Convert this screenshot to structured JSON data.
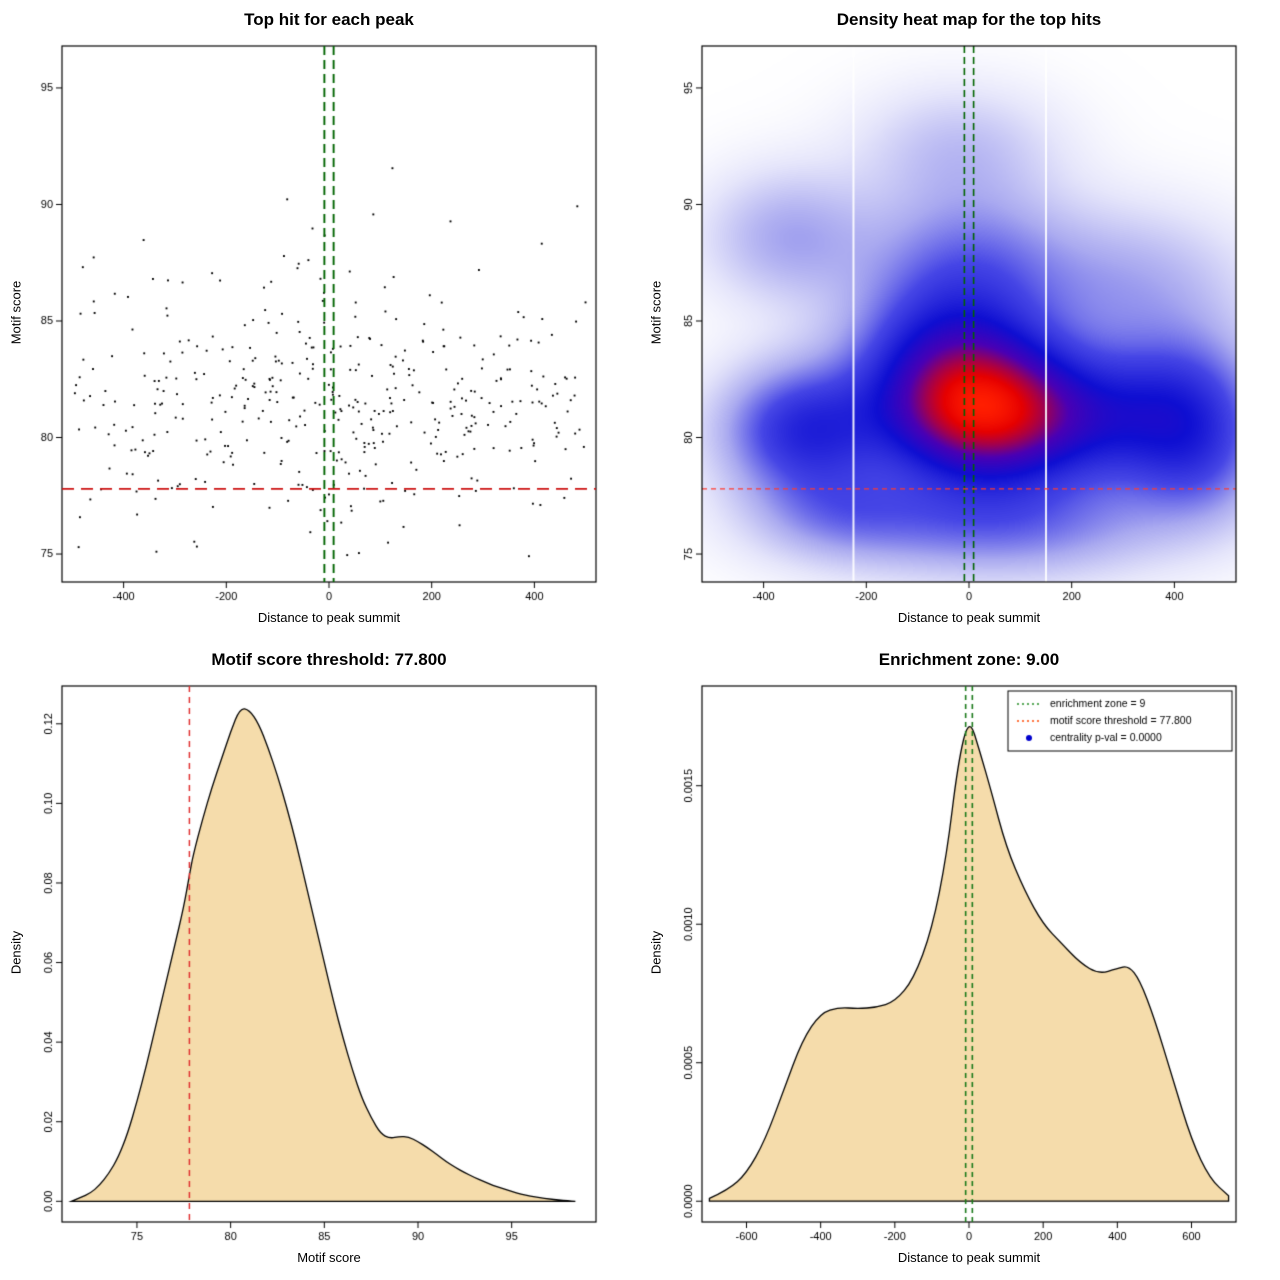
{
  "page": {
    "background": "#ffffff"
  },
  "chart_data": [
    {
      "id": "top-hits-scatter",
      "type": "scatter",
      "title": "Top hit for each peak",
      "xlabel": "Distance to peak summit",
      "ylabel": "Motif score",
      "xlim": [
        -520,
        520
      ],
      "ylim": [
        73.8,
        96.8
      ],
      "xticks": [
        -400,
        -200,
        0,
        200,
        400
      ],
      "xtick_labels": [
        "-400",
        "-200",
        "0",
        "200",
        "400"
      ],
      "yticks": [
        75,
        80,
        85,
        90,
        95
      ],
      "ytick_labels": [
        "75",
        "80",
        "85",
        "90",
        "95"
      ],
      "ytick_rotated": false,
      "motif_score_threshold": 77.8,
      "enrichment_zone": [
        -9,
        9
      ],
      "points_model": {
        "n": 430,
        "seed": 20,
        "x_range": [
          -500,
          500
        ],
        "y_mean": 81.4,
        "y_sd": 2.6,
        "y_min": 74.5,
        "y_max": 95.8,
        "high_frac": 0.05,
        "center_frac": 0.22,
        "center_spread": 170
      },
      "colors": {
        "point": "#000000",
        "threshold": "#cc1111",
        "zone": "#006400"
      }
    },
    {
      "id": "top-hits-density-heatmap",
      "type": "heatmap",
      "title": "Density heat map for the top hits",
      "xlabel": "Distance to peak summit",
      "ylabel": "Motif score",
      "xlim": [
        -520,
        520
      ],
      "ylim": [
        73.8,
        96.8
      ],
      "xticks": [
        -400,
        -200,
        0,
        200,
        400
      ],
      "xtick_labels": [
        "-400",
        "-200",
        "0",
        "200",
        "400"
      ],
      "yticks": [
        75,
        80,
        85,
        90,
        95
      ],
      "ytick_labels": [
        "75",
        "80",
        "85",
        "90",
        "95"
      ],
      "ytick_rotated": true,
      "motif_score_threshold": 77.8,
      "enrichment_zone": [
        -9,
        9
      ],
      "white_lines": [
        -225,
        150
      ],
      "gamma": 0.85,
      "kernels": [
        {
          "x": 20,
          "y": 81,
          "sx": 125,
          "sy": 2.0,
          "w": 1.05
        },
        {
          "x": -40,
          "y": 83.6,
          "sx": 130,
          "sy": 2.2,
          "w": 0.5
        },
        {
          "x": -320,
          "y": 80.3,
          "sx": 110,
          "sy": 1.9,
          "w": 0.55
        },
        {
          "x": 260,
          "y": 80.8,
          "sx": 160,
          "sy": 2.0,
          "w": 0.5
        },
        {
          "x": 430,
          "y": 81.5,
          "sx": 100,
          "sy": 2.3,
          "w": 0.3
        },
        {
          "x": 0,
          "y": 87.5,
          "sx": 140,
          "sy": 2.3,
          "w": 0.3
        },
        {
          "x": -350,
          "y": 88.6,
          "sx": 110,
          "sy": 1.9,
          "w": 0.22
        },
        {
          "x": 320,
          "y": 86.5,
          "sx": 150,
          "sy": 2.2,
          "w": 0.2
        },
        {
          "x": -20,
          "y": 92.4,
          "sx": 130,
          "sy": 1.8,
          "w": 0.15
        },
        {
          "x": 60,
          "y": 76.3,
          "sx": 220,
          "sy": 1.6,
          "w": 0.33
        },
        {
          "x": -250,
          "y": 76.8,
          "sx": 120,
          "sy": 1.4,
          "w": 0.2
        },
        {
          "x": 450,
          "y": 78.6,
          "sx": 90,
          "sy": 1.8,
          "w": 0.2
        }
      ],
      "colormap": [
        [
          0,
          "#ffffff"
        ],
        [
          0.07,
          "#e6e6fb"
        ],
        [
          0.2,
          "#aaaaf0"
        ],
        [
          0.35,
          "#4646e6"
        ],
        [
          0.52,
          "#0f0fd2"
        ],
        [
          0.68,
          "#4b00b4"
        ],
        [
          0.8,
          "#a5004b"
        ],
        [
          0.9,
          "#e60000"
        ],
        [
          1,
          "#ff1e00"
        ]
      ],
      "colors": {
        "threshold": "#ff3b30",
        "zone": "#006400"
      }
    },
    {
      "id": "motif-score-density",
      "type": "area",
      "title": "Motif score threshold: 77.800",
      "xlabel": "Motif score",
      "ylabel": "Density",
      "xlim": [
        71,
        99.5
      ],
      "ylim": [
        -0.0052,
        0.1295
      ],
      "xticks": [
        75,
        80,
        85,
        90,
        95
      ],
      "xtick_labels": [
        "75",
        "80",
        "85",
        "90",
        "95"
      ],
      "yticks": [
        0,
        0.02,
        0.04,
        0.06,
        0.08,
        0.1,
        0.12
      ],
      "ytick_labels": [
        "0.00",
        "0.02",
        "0.04",
        "0.06",
        "0.08",
        "0.10",
        "0.12"
      ],
      "ytick_rotated": true,
      "threshold_x": 77.8,
      "fill": "#f5dcab",
      "stroke": "#000000",
      "colors": {
        "threshold": "#e03131"
      },
      "curve": {
        "x": [
          71.5,
          72,
          72.5,
          73,
          73.5,
          74,
          74.5,
          75,
          75.5,
          76,
          76.5,
          77,
          77.5,
          77.8,
          78,
          78.5,
          79,
          79.5,
          80,
          80.5,
          81,
          81.5,
          82,
          82.5,
          83,
          83.5,
          84,
          84.5,
          85,
          85.5,
          86,
          86.5,
          87,
          87.5,
          88,
          88.5,
          89,
          89.5,
          90,
          90.5,
          91,
          91.5,
          92,
          92.5,
          93,
          93.5,
          94,
          94.5,
          95,
          95.5,
          96,
          96.5,
          97,
          97.5,
          98,
          98.4
        ],
        "y": [
          0,
          0.001,
          0.002,
          0.004,
          0.007,
          0.011,
          0.017,
          0.025,
          0.034,
          0.044,
          0.054,
          0.064,
          0.074,
          0.082,
          0.087,
          0.096,
          0.104,
          0.111,
          0.118,
          0.124,
          0.1235,
          0.12,
          0.114,
          0.107,
          0.099,
          0.09,
          0.08,
          0.07,
          0.06,
          0.05,
          0.041,
          0.033,
          0.026,
          0.021,
          0.017,
          0.0158,
          0.0163,
          0.0162,
          0.015,
          0.0135,
          0.0118,
          0.01,
          0.0085,
          0.0072,
          0.006,
          0.005,
          0.004,
          0.0032,
          0.0025,
          0.0018,
          0.0013,
          0.0009,
          0.0006,
          0.0003,
          0.0001,
          0
        ]
      }
    },
    {
      "id": "summit-distance-density",
      "type": "area",
      "title": "Enrichment zone: 9.00",
      "xlabel": "Distance to peak summit",
      "ylabel": "Density",
      "xlim": [
        -720,
        720
      ],
      "ylim": [
        -7.5e-05,
        0.00186
      ],
      "xticks": [
        -600,
        -400,
        -200,
        0,
        200,
        400,
        600
      ],
      "xtick_labels": [
        "-600",
        "-400",
        "-200",
        "0",
        "200",
        "400",
        "600"
      ],
      "yticks": [
        0,
        0.0005,
        0.001,
        0.0015
      ],
      "ytick_labels": [
        "0.0000",
        "0.0005",
        "0.0010",
        "0.0015"
      ],
      "ytick_rotated": true,
      "enrichment_zone": [
        -9,
        9
      ],
      "fill": "#f5dcab",
      "stroke": "#000000",
      "colors": {
        "zone": "#1a7a1a"
      },
      "legend": [
        {
          "label": "enrichment zone = 9",
          "symbol": "dotted-line",
          "color": "#228b22"
        },
        {
          "label": "motif score threshold = 77.800",
          "symbol": "dotted-line",
          "color": "#ff4500"
        },
        {
          "label": "centrality p-val = 0.0000",
          "symbol": "dot",
          "color": "#0000cd"
        }
      ],
      "curve": {
        "x": [
          -700,
          -650,
          -600,
          -550,
          -500,
          -450,
          -400,
          -350,
          -300,
          -250,
          -200,
          -150,
          -100,
          -60,
          -30,
          0,
          30,
          60,
          100,
          150,
          200,
          250,
          300,
          350,
          400,
          430,
          460,
          500,
          550,
          600,
          650,
          700
        ],
        "y": [
          1e-05,
          4e-05,
          0.0001,
          0.00022,
          0.0004,
          0.00058,
          0.00068,
          0.0007,
          0.000695,
          0.0007,
          0.00072,
          0.0008,
          0.00098,
          0.00125,
          0.00158,
          0.00175,
          0.00162,
          0.00148,
          0.00128,
          0.00112,
          0.001,
          0.00093,
          0.00086,
          0.00082,
          0.00084,
          0.00085,
          0.0008,
          0.00066,
          0.00044,
          0.00022,
          8e-05,
          2e-05
        ]
      }
    }
  ]
}
